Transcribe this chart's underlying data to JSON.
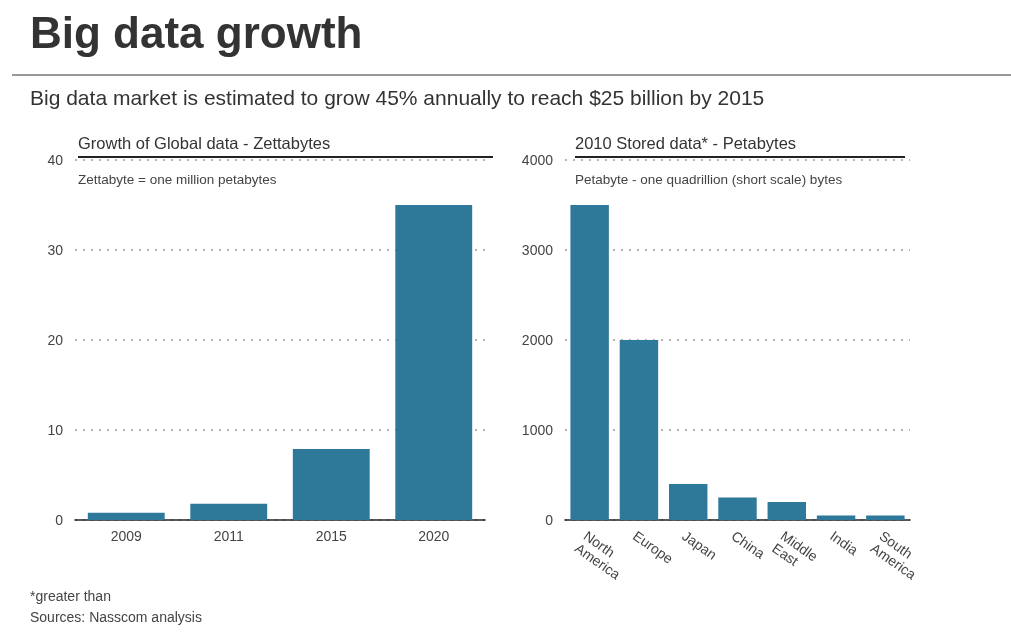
{
  "chart_data": [
    {
      "type": "other",
      "title": "Big data growth",
      "subtitle": "Big data market is estimated to grow 45% annually to reach $25 billion by 2015",
      "annotations": [
        "*greater than",
        "Sources: Nasscom analysis"
      ]
    },
    {
      "type": "bar",
      "title": "Growth of Global data - Zettabytes",
      "subtitle": "Zettabyte = one million petabytes",
      "categories": [
        "2009",
        "2011",
        "2015",
        "2020"
      ],
      "values": [
        0.8,
        1.8,
        7.9,
        35
      ],
      "color": "#2e7899",
      "ylim": [
        0,
        40
      ],
      "yticks": [
        0,
        10,
        20,
        30,
        40
      ],
      "grid": "y"
    },
    {
      "type": "bar",
      "title": "2010 Stored data* - Petabytes",
      "subtitle": "Petabyte - one quadrillion (short scale) bytes",
      "categories": [
        "North America",
        "Europe",
        "Japan",
        "China",
        "Middle East",
        "India",
        "South America"
      ],
      "values": [
        3500,
        2000,
        400,
        250,
        200,
        50,
        50
      ],
      "color": "#2e7899",
      "ylim": [
        0,
        4000
      ],
      "yticks": [
        0,
        1000,
        2000,
        3000,
        4000
      ],
      "grid": "y"
    }
  ]
}
